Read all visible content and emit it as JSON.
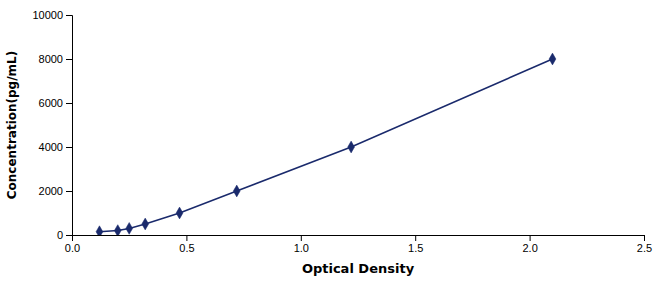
{
  "chart_data": {
    "type": "line",
    "x": [
      0.12,
      0.2,
      0.25,
      0.32,
      0.47,
      0.72,
      1.22,
      2.1
    ],
    "values": [
      150,
      200,
      300,
      500,
      1000,
      2000,
      4000,
      8000
    ],
    "color": "#1a2a6c",
    "marker": "diamond",
    "line_style": "solid",
    "xlabel": "Optical Density",
    "ylabel": "Concentration(pg/mL)",
    "xlim": [
      0,
      2.5
    ],
    "ylim": [
      0,
      10000
    ],
    "xticks": [
      {
        "value": 0,
        "label": "0.0"
      },
      0.5,
      {
        "value": 1,
        "label": "1.0"
      },
      1.5,
      {
        "value": 2,
        "label": "2.0"
      },
      2.5
    ],
    "yticks": [
      0,
      2000,
      4000,
      6000,
      8000,
      10000
    ],
    "grid": false
  }
}
